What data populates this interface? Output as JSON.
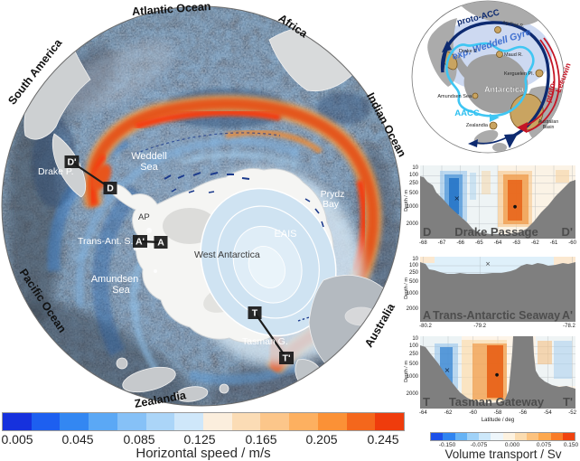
{
  "figure": {
    "map": {
      "rim_labels": {
        "atlantic_ocean": "Atlantic Ocean",
        "africa": "Africa",
        "south_america": "South America",
        "indian_ocean": "Indian Ocean",
        "pacific_ocean": "Pacific Ocean",
        "australia": "Australia",
        "zealandia": "Zealandia"
      },
      "sea_labels": {
        "weddell_1": "Weddell",
        "weddell_2": "Sea",
        "drake_p": "Drake P.",
        "ap": "AP",
        "trans_ant_s": "Trans-Ant. S.",
        "west_antarctica": "West Antarctica",
        "amundsen_1": "Amundsen",
        "amundsen_2": "Sea",
        "eais": "EAIS",
        "prydz_1": "Prydz",
        "prydz_2": "Bay",
        "tasman_g": "Tasman G."
      },
      "section_markers": {
        "d_prime": "D'",
        "d": "D",
        "a_prime": "A'",
        "a": "A",
        "t": "T",
        "t_prime": "T'"
      }
    },
    "speed_colorbar": {
      "label": "Horizontal speed / m/s",
      "ticks": [
        "0.005",
        "0.045",
        "0.085",
        "0.125",
        "0.165",
        "0.205",
        "0.245"
      ],
      "colors": [
        "#1631dd",
        "#1d5ff0",
        "#3387f2",
        "#5ba8f5",
        "#86c1f7",
        "#abd5f8",
        "#cfe7fa",
        "#fbeedd",
        "#fbdcb5",
        "#fcc68a",
        "#fdb060",
        "#fb9136",
        "#f4671c",
        "#ef3c0c"
      ]
    },
    "inset": {
      "labels": {
        "proto_acc": "proto-ACC",
        "agulhas_r": "Agulhas R.",
        "weddell_gyre": "exp. Weddell Gyre",
        "maud_r": "Maud R.",
        "drake_p": "Drake P.",
        "kerguelen_pl": "Kerguelen Pl.",
        "antarctica": "Antarctica",
        "amundsen_sea": "Amundsen Sea",
        "aacc": "AACC",
        "proto_leeuwin_1": "proto-",
        "proto_leeuwin_2": "Leeuwin",
        "zealandia": "Zealandia",
        "australian_basin_1": "Australian",
        "australian_basin_2": "Basin"
      },
      "colors": {
        "proto_acc": "#0d2a70",
        "aacc": "#2fc0f0",
        "proto_leeuwin": "#c41525",
        "gyre_text": "#3e6fd0"
      }
    },
    "sections": [
      {
        "name": "Drake Passage",
        "start": "D",
        "end": "D'",
        "ylabel": "Depth / m",
        "yticks": [
          "10",
          "100",
          "250",
          "500",
          "1000",
          "2000"
        ],
        "xticks": [
          "-68",
          "-67",
          "-66",
          "-65",
          "-64",
          "-63",
          "-62",
          "-61",
          "-60"
        ],
        "x_marker": "×",
        "dot_marker": "●"
      },
      {
        "name": "Trans-Antarctic Seaway",
        "start": "A",
        "end": "A'",
        "ylabel": "Depth / m",
        "yticks": [
          "10",
          "100",
          "250",
          "500",
          "1000",
          "2000"
        ],
        "xticks": [
          "-80.2",
          "-79.2",
          "-78.2"
        ],
        "x_marker": "×"
      },
      {
        "name": "Tasman Gateway",
        "start": "T",
        "end": "T'",
        "ylabel": "Depth / m",
        "yticks": [
          "10",
          "100",
          "250",
          "500",
          "1000",
          "2000"
        ],
        "xticks": [
          "-64",
          "-62",
          "-60",
          "-58",
          "-56",
          "-54",
          "-52"
        ],
        "xlabel": "Latitude / deg",
        "x_marker": "×",
        "dot_marker": "●"
      }
    ],
    "transport_colorbar": {
      "label": "Volume transport / Sv",
      "ticks": [
        "-0.150",
        "-0.075",
        "0.000",
        "0.075",
        "0.150"
      ],
      "colors": [
        "#1d50e8",
        "#2f84f0",
        "#66b3f5",
        "#a0d2f8",
        "#cde8fa",
        "#eef6fb",
        "#fdf2e0",
        "#fbdcb0",
        "#fcc27e",
        "#fda84e",
        "#f97c28",
        "#f0430f"
      ]
    }
  },
  "chart_data": [
    {
      "type": "heatmap",
      "title": "Drake Passage",
      "section_endpoints": [
        "D",
        "D'"
      ],
      "ylabel": "Depth / m",
      "y_ticks": [
        10,
        100,
        250,
        500,
        1000,
        2000
      ],
      "y_scale": "log-like depth axis",
      "x_ticks": [
        -68,
        -67,
        -66,
        -65,
        -64,
        -63,
        -62,
        -61,
        -60
      ],
      "value_range_sv": [
        -0.1875,
        0.1875
      ],
      "features": [
        {
          "sign": "negative",
          "color": "blue",
          "center_lat": -66.8,
          "lat_span": [
            -67.6,
            -65.9
          ],
          "depth_span_m": [
            100,
            1200
          ],
          "marker": "x",
          "marker_at": {
            "lat": -66.8,
            "depth_m": 500
          }
        },
        {
          "sign": "positive",
          "color": "orange",
          "center_lat": -63.3,
          "lat_span": [
            -64.3,
            -62.2
          ],
          "depth_span_m": [
            50,
            1600
          ],
          "marker": "dot",
          "marker_at": {
            "lat": -63.3,
            "depth_m": 650
          }
        }
      ],
      "bathymetry": "V-shaped passage; shelves ~100-250 m at both ends, floor deeper than 2000 m between about -65.5 and -63.5"
    },
    {
      "type": "heatmap",
      "title": "Trans-Antarctic Seaway",
      "section_endpoints": [
        "A",
        "A'"
      ],
      "ylabel": "Depth / m",
      "y_ticks": [
        10,
        100,
        250,
        500,
        1000,
        2000
      ],
      "x_ticks": [
        -80.2,
        -79.2,
        -78.2
      ],
      "value_range_sv": [
        -0.1875,
        0.1875
      ],
      "features": [
        {
          "sign": "negative",
          "color": "pale blue",
          "center_lat": -79.45,
          "depth_span_m": [
            0,
            250
          ],
          "marker": "x",
          "marker_at": {
            "lat": -79.45,
            "depth_m": 40
          }
        }
      ],
      "bathymetry": "shallow seaway only ~100-250 m deep across entire section; gray below"
    },
    {
      "type": "heatmap",
      "title": "Tasman Gateway",
      "section_endpoints": [
        "T",
        "T'"
      ],
      "ylabel": "Depth / m",
      "xlabel": "Latitude / deg",
      "y_ticks": [
        10,
        100,
        250,
        500,
        1000,
        2000
      ],
      "x_ticks": [
        -64,
        -62,
        -60,
        -58,
        -56,
        -54,
        -52
      ],
      "value_range_sv": [
        -0.1875,
        0.1875
      ],
      "features": [
        {
          "sign": "negative",
          "color": "blue",
          "center_lat": -62.4,
          "depth_span_m": [
            100,
            900
          ],
          "marker": "x",
          "marker_at": {
            "lat": -62.4,
            "depth_m": 500
          }
        },
        {
          "sign": "positive",
          "color": "orange",
          "center_lat": -57.8,
          "lat_span": [
            -59.5,
            -57.2
          ],
          "depth_span_m": [
            50,
            1800
          ],
          "marker": "dot",
          "marker_at": {
            "lat": -57.8,
            "depth_m": 500
          }
        },
        {
          "sign": "mixed weak",
          "color": "pale blue/orange",
          "lat_span": [
            -55,
            -52
          ],
          "depth_span_m": [
            0,
            600
          ]
        }
      ],
      "bathymetry": "deep basin left-center (>2000 m), tall ridge block near -58.5 to -57.5 reaching surface, shelf ~250-500 m on right"
    },
    {
      "type": "colorbar",
      "title": "Horizontal speed / m/s",
      "ticks": [
        0.005,
        0.045,
        0.085,
        0.125,
        0.165,
        0.205,
        0.245
      ],
      "orientation": "horizontal",
      "scheme": "blue to white to orange-red, 14 discrete steps"
    },
    {
      "type": "colorbar",
      "title": "Volume transport / Sv",
      "ticks": [
        -0.15,
        -0.075,
        0.0,
        0.075,
        0.15
      ],
      "orientation": "horizontal",
      "scheme": "blue to white to orange-red diverging, 12 discrete steps"
    }
  ]
}
